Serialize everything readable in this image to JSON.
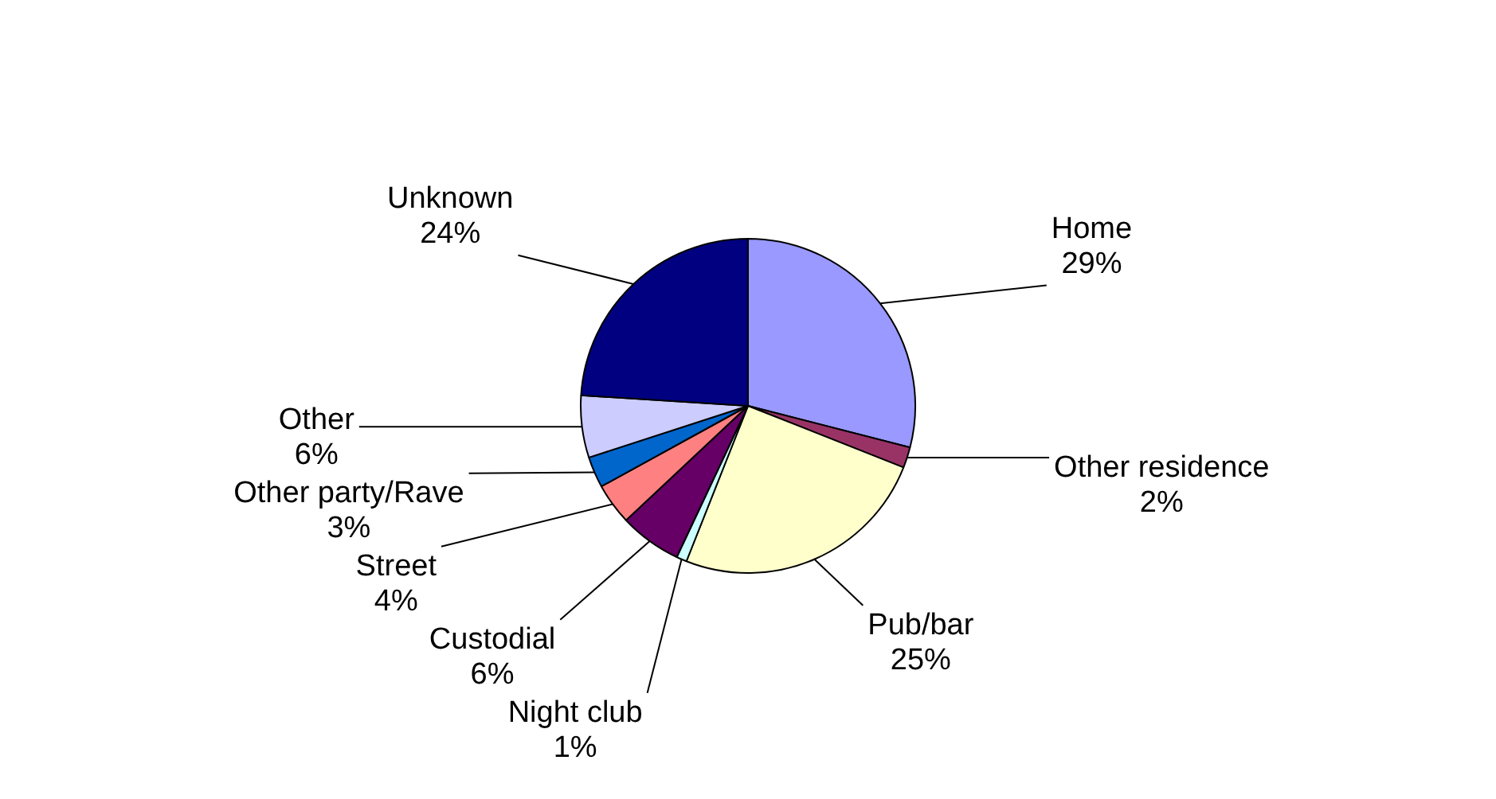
{
  "chart_data": {
    "type": "pie",
    "categories": [
      "Home",
      "Other residence",
      "Pub/bar",
      "Night club",
      "Custodial",
      "Street",
      "Other party/Rave",
      "Other",
      "Unknown"
    ],
    "values": [
      29,
      2,
      25,
      1,
      6,
      4,
      3,
      6,
      24
    ],
    "colors": [
      "#9999ff",
      "#993366",
      "#ffffcc",
      "#ccffff",
      "#660066",
      "#ff8080",
      "#0066cc",
      "#ccccff",
      "#000080"
    ],
    "value_labels": [
      "29%",
      "2%",
      "25%",
      "1%",
      "6%",
      "4%",
      "3%",
      "6%",
      "24%"
    ],
    "legend": false
  }
}
